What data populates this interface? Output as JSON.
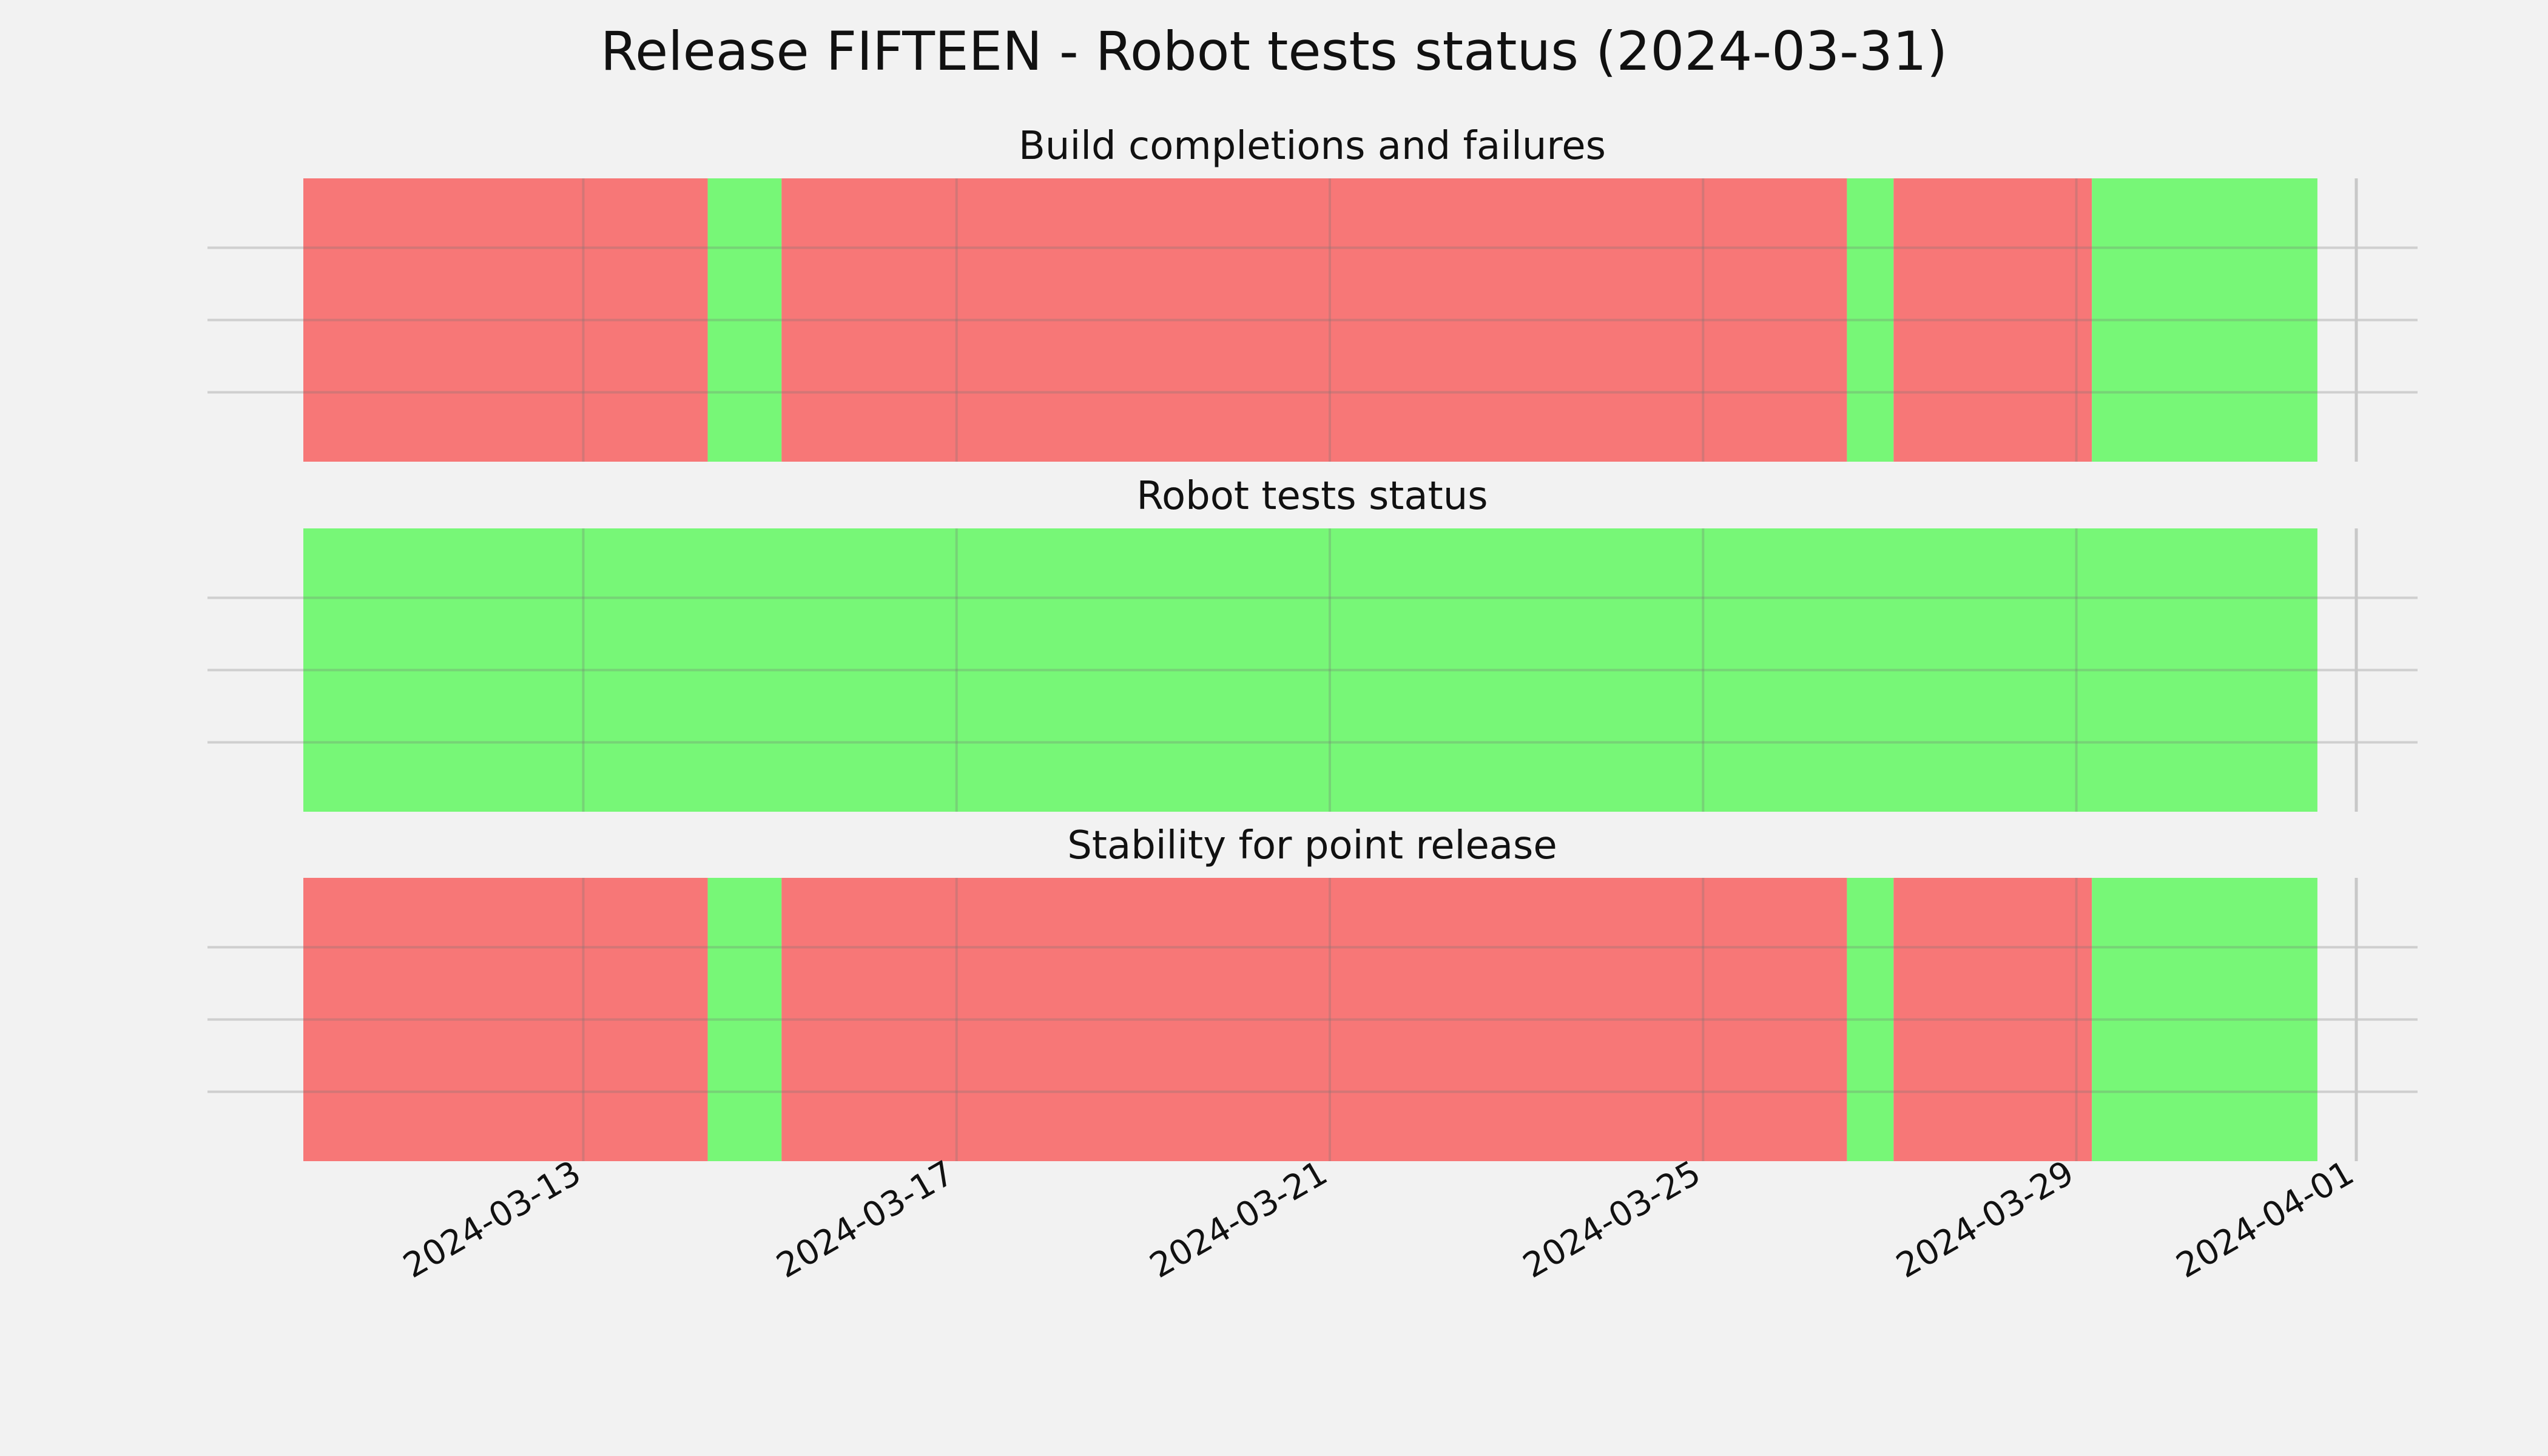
{
  "chart_data": {
    "type": "timeline",
    "title": "Release FIFTEEN - Robot tests status (2024-03-31)",
    "x_axis": {
      "type": "date",
      "range": [
        "2024-03-10",
        "2024-04-01"
      ],
      "ticks": [
        "2024-03-13",
        "2024-03-17",
        "2024-03-21",
        "2024-03-25",
        "2024-03-29",
        "2024-04-01"
      ]
    },
    "grid": true,
    "status_colors": {
      "pass": "#77f777",
      "fail": "#f77777"
    },
    "panels": [
      {
        "title": "Build completions and failures",
        "segments": [
          {
            "start": "2024-03-10",
            "end": "2024-03-14T08:00",
            "status": "fail"
          },
          {
            "start": "2024-03-14T08:00",
            "end": "2024-03-15T03:00",
            "status": "pass"
          },
          {
            "start": "2024-03-15T03:00",
            "end": "2024-03-26T13:00",
            "status": "fail"
          },
          {
            "start": "2024-03-26T13:00",
            "end": "2024-03-27T01:00",
            "status": "pass"
          },
          {
            "start": "2024-03-27T01:00",
            "end": "2024-03-29T04:00",
            "status": "fail"
          },
          {
            "start": "2024-03-29T04:00",
            "end": "2024-03-31T14:00",
            "status": "pass"
          }
        ]
      },
      {
        "title": "Robot tests status",
        "segments": [
          {
            "start": "2024-03-10",
            "end": "2024-03-31T14:00",
            "status": "pass"
          }
        ]
      },
      {
        "title": "Stability for point release",
        "segments": [
          {
            "start": "2024-03-10",
            "end": "2024-03-14T08:00",
            "status": "fail"
          },
          {
            "start": "2024-03-14T08:00",
            "end": "2024-03-15T03:00",
            "status": "pass"
          },
          {
            "start": "2024-03-15T03:00",
            "end": "2024-03-26T13:00",
            "status": "fail"
          },
          {
            "start": "2024-03-26T13:00",
            "end": "2024-03-27T01:00",
            "status": "pass"
          },
          {
            "start": "2024-03-27T01:00",
            "end": "2024-03-29T04:00",
            "status": "fail"
          },
          {
            "start": "2024-03-29T04:00",
            "end": "2024-03-31T14:00",
            "status": "pass"
          }
        ]
      }
    ]
  }
}
